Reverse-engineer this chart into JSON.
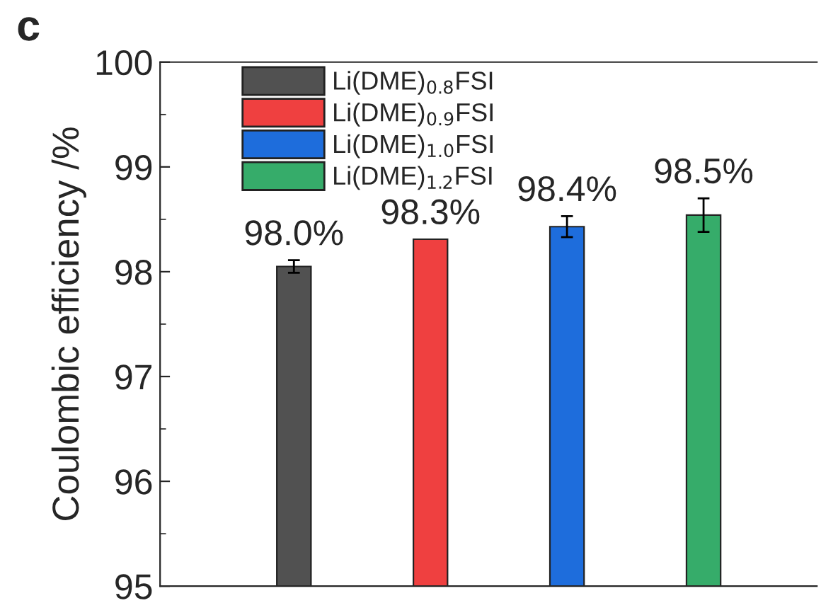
{
  "chart_data": {
    "type": "bar",
    "ylabel": "Coulombic efficiency /%",
    "annotations": [
      "c"
    ],
    "categories": [
      null,
      null,
      null,
      null
    ],
    "series": [
      {
        "name": "Li(DME)$_{0.8}$FSI",
        "color": "#515151",
        "values": [
          98.05,
          null,
          null,
          null
        ],
        "errors": [
          0.06,
          null,
          null,
          null
        ],
        "value_labels": [
          "98.0%",
          null,
          null,
          null
        ]
      },
      {
        "name": "Li(DME)$_{0.9}$FSI",
        "color": "#ef4040",
        "values": [
          null,
          98.31,
          null,
          null
        ],
        "value_labels": [
          null,
          "98.3%",
          null,
          null
        ]
      },
      {
        "name": "Li(DME)$_{1.0}$FSI",
        "color": "#1e6ddc",
        "values": [
          null,
          null,
          98.43,
          null
        ],
        "errors": [
          null,
          null,
          0.1,
          null
        ],
        "value_labels": [
          null,
          null,
          "98.4%",
          null
        ]
      },
      {
        "name": "Li(DME)$_{1.2}$FSI",
        "color": "#36ac6a",
        "values": [
          null,
          null,
          null,
          98.54
        ],
        "errors": [
          null,
          null,
          null,
          0.16
        ],
        "value_labels": [
          null,
          null,
          null,
          "98.5%"
        ]
      }
    ],
    "ylim": [
      95,
      100
    ],
    "yticks": [
      95,
      96,
      97,
      98,
      99,
      100
    ],
    "legend": "top left",
    "grid": false
  }
}
